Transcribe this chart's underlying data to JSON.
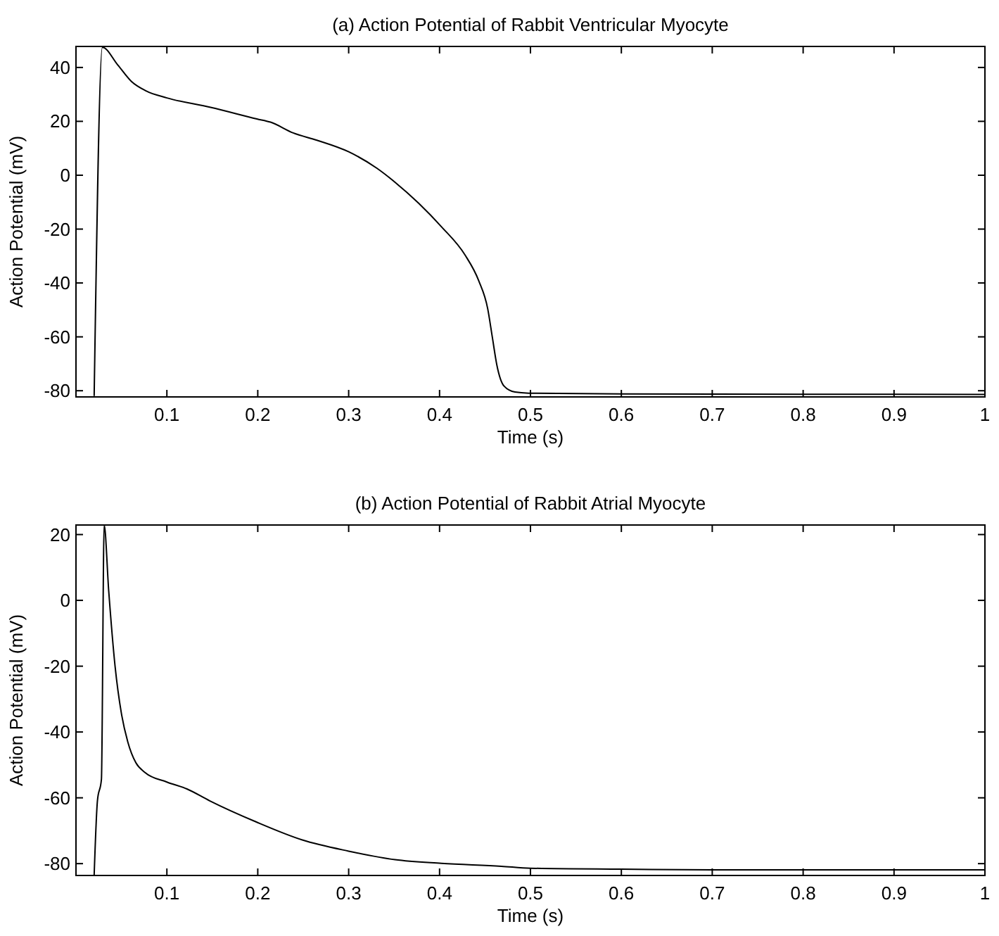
{
  "chart_data": [
    {
      "type": "line",
      "title": "(a) Action Potential of Rabbit Ventricular Myocyte",
      "xlabel": "Time (s)",
      "ylabel": "Action Potential (mV)",
      "xlim": [
        0,
        1
      ],
      "ylim": [
        -82.3,
        47.8
      ],
      "xticks": [
        0.1,
        0.2,
        0.3,
        0.4,
        0.5,
        0.6,
        0.7,
        0.8,
        0.9,
        1
      ],
      "yticks": [
        -80,
        -60,
        -40,
        -20,
        0,
        20,
        40
      ],
      "grid": false,
      "marker": "none",
      "line_style": "solid",
      "series": [
        {
          "color": "#000000",
          "x": [
            0.02,
            0.029,
            0.046,
            0.061,
            0.077,
            0.1,
            0.148,
            0.199,
            0.214,
            0.239,
            0.265,
            0.3,
            0.331,
            0.351,
            0.377,
            0.402,
            0.428,
            0.443,
            0.453,
            0.458,
            0.463,
            0.471,
            0.483,
            0.498,
            0.6,
            0.8,
            1.0
          ],
          "values": [
            -82,
            47.5,
            40.9,
            34.8,
            31.3,
            28.7,
            25.2,
            20.9,
            19.7,
            15.7,
            13,
            8.7,
            2.6,
            -2.6,
            -10.4,
            -19.1,
            -29.6,
            -39.1,
            -49.6,
            -60,
            -70.4,
            -78.3,
            -80.5,
            -80.9,
            -81.2,
            -81.3,
            -81.4
          ]
        }
      ]
    },
    {
      "type": "line",
      "title": "(b) Action Potential of Rabbit Atrial Myocyte",
      "xlabel": "Time (s)",
      "ylabel": "Action Potential (mV)",
      "xlim": [
        0,
        1
      ],
      "ylim": [
        -83.6,
        22.9
      ],
      "xticks": [
        0.1,
        0.2,
        0.3,
        0.4,
        0.5,
        0.6,
        0.7,
        0.8,
        0.9,
        1
      ],
      "yticks": [
        -80,
        -60,
        -40,
        -20,
        0,
        20
      ],
      "grid": false,
      "marker": "none",
      "line_style": "solid",
      "series": [
        {
          "color": "#000000",
          "x": [
            0.02,
            0.0236,
            0.028,
            0.031,
            0.036,
            0.043,
            0.05,
            0.057,
            0.066,
            0.076,
            0.1,
            0.122,
            0.147,
            0.198,
            0.249,
            0.3,
            0.351,
            0.402,
            0.468,
            0.5,
            0.6,
            0.7,
            0.8,
            1.0
          ],
          "values": [
            -83.5,
            -60.9,
            -54.4,
            22.9,
            2.9,
            -20,
            -34.4,
            -43,
            -49.4,
            -52.3,
            -55.2,
            -57.3,
            -60.9,
            -67.3,
            -72.8,
            -76.2,
            -78.8,
            -79.9,
            -80.8,
            -81.4,
            -81.7,
            -81.9,
            -81.9,
            -81.9
          ]
        }
      ]
    }
  ]
}
